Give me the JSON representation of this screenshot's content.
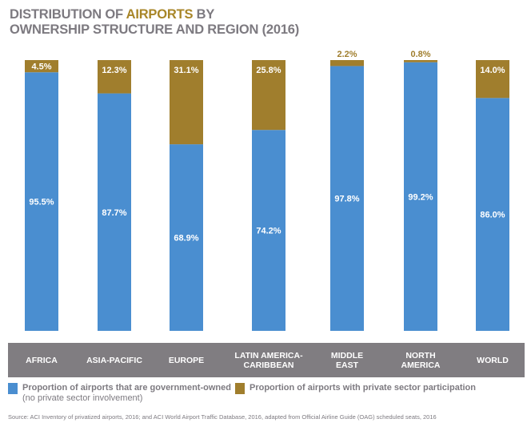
{
  "title": {
    "line1_pre": "DISTRIBUTION OF ",
    "line1_highlight": "AIRPORTS",
    "line1_post": " BY",
    "line2": "OWNERSHIP STRUCTURE AND REGION (2016)"
  },
  "chart_data": {
    "type": "bar",
    "stacked": true,
    "categories": [
      "AFRICA",
      "ASIA-PACIFIC",
      "EUROPE",
      "LATIN AMERICA-\nCARIBBEAN",
      "MIDDLE\nEAST",
      "NORTH\nAMERICA",
      "WORLD"
    ],
    "series": [
      {
        "name": "Proportion of airports that are government-owned",
        "color": "#4a8ed0",
        "values": [
          95.5,
          87.7,
          68.9,
          74.2,
          97.8,
          99.2,
          86.0
        ],
        "labels": [
          "95.5%",
          "87.7%",
          "68.9%",
          "74.2%",
          "97.8%",
          "99.2%",
          "86.0%"
        ]
      },
      {
        "name": "Proportion of airports with private sector participation",
        "color": "#a07e2d",
        "values": [
          4.5,
          12.3,
          31.1,
          25.8,
          2.2,
          0.8,
          14.0
        ],
        "labels": [
          "4.5%",
          "12.3%",
          "31.1%",
          "25.8%",
          "2.2%",
          "0.8%",
          "14.0%"
        ]
      }
    ],
    "ylim": [
      0,
      100
    ],
    "legend": "bottom"
  },
  "legend": {
    "gov_label": "Proportion of airports that are government-owned",
    "gov_sub": "(no private sector involvement)",
    "private_label": "Proportion of airports with private sector participation"
  },
  "source": "Source: ACI Inventory of privatized airports, 2016; and ACI World Airport Traffic Database, 2016, adapted from Official Airline Guide (OAG) scheduled seats, 2016"
}
